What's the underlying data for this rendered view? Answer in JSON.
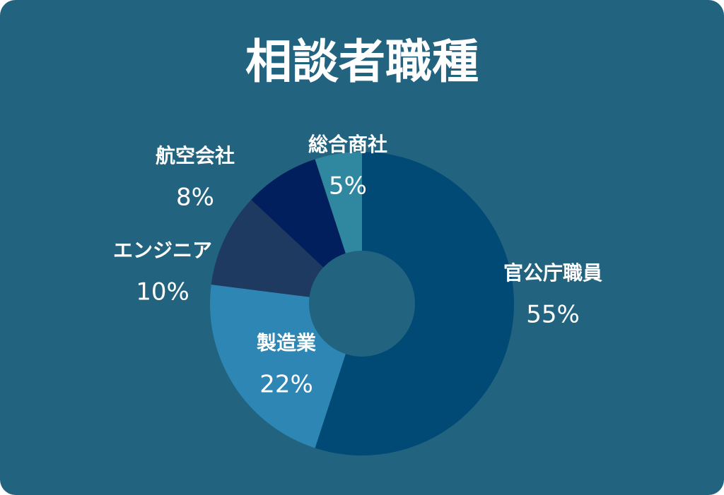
{
  "chart_data": {
    "type": "donut",
    "title": "相談者職種",
    "categories": [
      "官公庁職員",
      "製造業",
      "エンジニア",
      "航空会社",
      "総合商社"
    ],
    "values": [
      55,
      22,
      10,
      8,
      5
    ],
    "value_labels": [
      "55%",
      "22%",
      "10%",
      "8%",
      "5%"
    ],
    "colors": [
      "#004a75",
      "#2e86b4",
      "#1f3a60",
      "#001f5c",
      "#2f87a0"
    ]
  }
}
